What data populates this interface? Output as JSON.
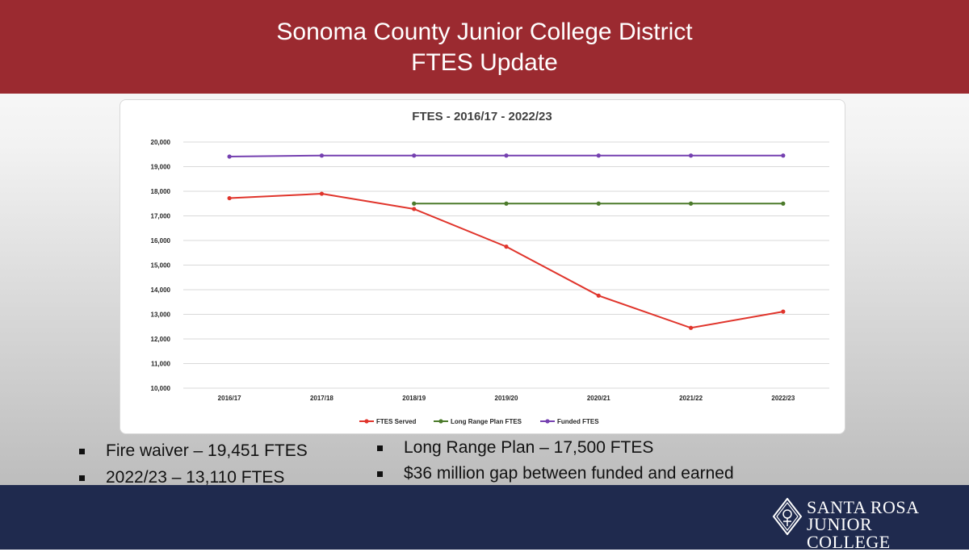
{
  "header": {
    "line1": "Sonoma County Junior College District",
    "line2": "FTES Update"
  },
  "colors": {
    "header_bg": "#9b2a30",
    "footer_bg": "#1f2a4e",
    "ftes_served": "#e0342b",
    "long_range_plan": "#4b7a2a",
    "funded": "#7540b0"
  },
  "bullets_left": [
    "Fire waiver – 19,451 FTES",
    "2022/23 – 13,110 FTES"
  ],
  "bullets_right": [
    "Long Range Plan – 17,500 FTES",
    "$36 million gap between funded and earned"
  ],
  "logo": {
    "line1": "SANTA ROSA",
    "line2": "JUNIOR COLLEGE",
    "icon": "santa-rosa-seal-icon"
  },
  "chart_data": {
    "type": "line",
    "title": "FTES  - 2016/17 - 2022/23",
    "xlabel": "",
    "ylabel": "",
    "categories": [
      "2016/17",
      "2017/18",
      "2018/19",
      "2019/20",
      "2020/21",
      "2021/22",
      "2022/23"
    ],
    "ylim": [
      10000,
      20000
    ],
    "yticks": [
      10000,
      11000,
      12000,
      13000,
      14000,
      15000,
      16000,
      17000,
      18000,
      19000,
      20000
    ],
    "ytick_labels": [
      "10,000",
      "11,000",
      "12,000",
      "13,000",
      "14,000",
      "15,000",
      "16,000",
      "17,000",
      "18,000",
      "19,000",
      "20,000"
    ],
    "grid": true,
    "legend": "bottom",
    "series": [
      {
        "name": "FTES Served",
        "color": "#e0342b",
        "values": [
          17720,
          17900,
          17280,
          15750,
          13760,
          12450,
          13110
        ]
      },
      {
        "name": "Long Range Plan FTES",
        "color": "#4b7a2a",
        "values": [
          null,
          null,
          17500,
          17500,
          17500,
          17500,
          17500
        ]
      },
      {
        "name": "Funded FTES",
        "color": "#7540b0",
        "values": [
          19410,
          19451,
          19451,
          19451,
          19451,
          19451,
          19451
        ]
      }
    ]
  }
}
